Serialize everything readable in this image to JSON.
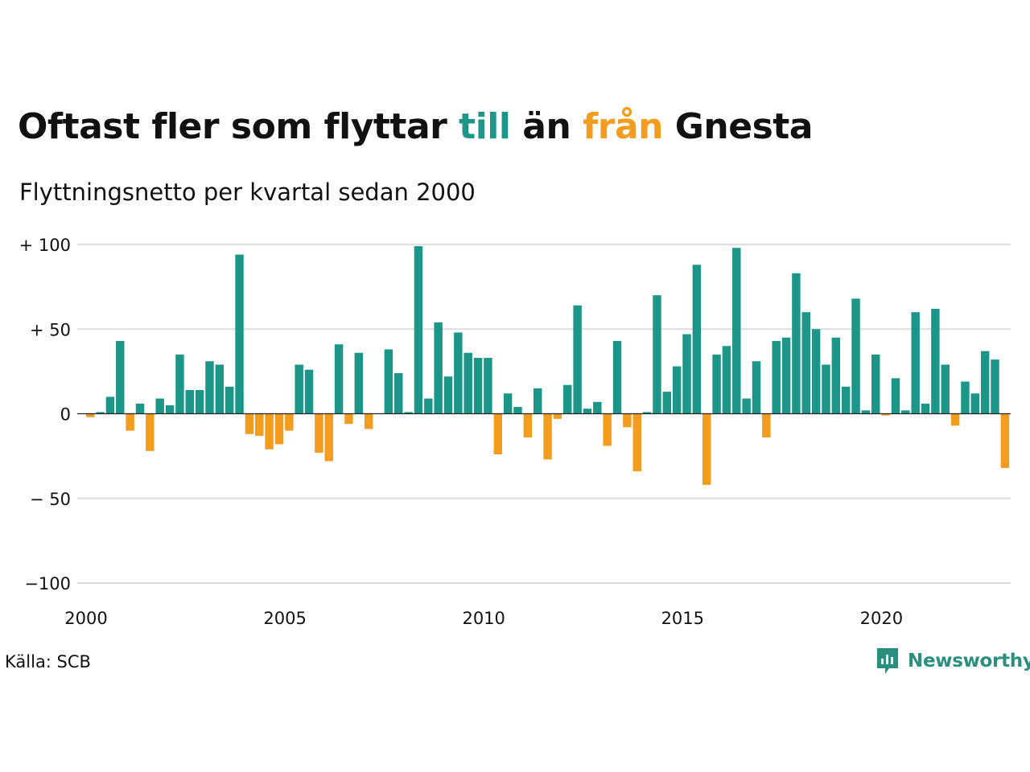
{
  "title": {
    "part1": "Oftast fler som flyttar ",
    "pos_word": "till",
    "part2": " än ",
    "neg_word": "från",
    "part3": " Gnesta"
  },
  "subtitle": "Flyttningsnetto per kvartal sedan 2000",
  "source": "Källa: SCB",
  "brand": "Newsworthy",
  "colors": {
    "positive": "#1b9688",
    "negative": "#f39c1e",
    "grid": "#dddddd",
    "zero": "#222222"
  },
  "chart_data": {
    "type": "bar",
    "start_year": 2000,
    "ylim": [
      -100,
      100
    ],
    "y_ticks": [
      {
        "value": 100,
        "label": "+ 100"
      },
      {
        "value": 50,
        "label": "+  50"
      },
      {
        "value": 0,
        "label": "0"
      },
      {
        "value": -50,
        "label": "− 50"
      },
      {
        "value": -100,
        "label": "−100"
      }
    ],
    "x_ticks": [
      "2000",
      "2005",
      "2010",
      "2015",
      "2020"
    ],
    "values": [
      -2,
      1,
      10,
      43,
      -10,
      6,
      -22,
      9,
      5,
      35,
      14,
      14,
      31,
      29,
      16,
      94,
      -12,
      -13,
      -21,
      -18,
      -10,
      29,
      26,
      -23,
      -28,
      41,
      -6,
      36,
      -9,
      0,
      38,
      24,
      1,
      99,
      9,
      54,
      22,
      48,
      36,
      33,
      33,
      -24,
      12,
      4,
      -14,
      15,
      -27,
      -3,
      17,
      64,
      3,
      7,
      -19,
      43,
      -8,
      -34,
      1,
      70,
      13,
      28,
      47,
      88,
      -42,
      35,
      40,
      98,
      9,
      31,
      -14,
      43,
      45,
      83,
      60,
      50,
      29,
      45,
      16,
      68,
      2,
      35,
      -1,
      21,
      2,
      60,
      6,
      62,
      29,
      -7,
      19,
      12,
      37,
      32,
      -32
    ]
  }
}
